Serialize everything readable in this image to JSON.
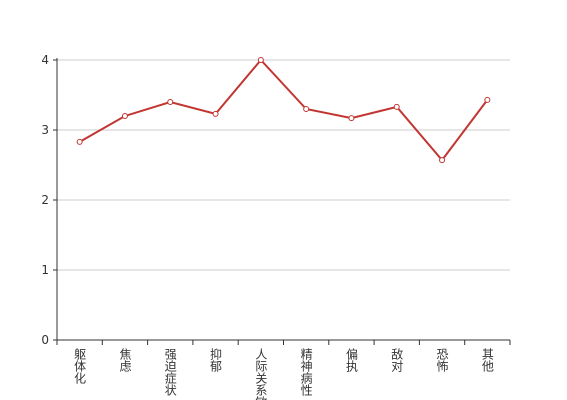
{
  "chart_data": {
    "type": "line",
    "categories": [
      "躯体化",
      "焦虑",
      "强迫症状",
      "抑郁",
      "人际关系敏感",
      "精神病性",
      "偏执",
      "敌对",
      "恐怖",
      "其他"
    ],
    "series": [
      {
        "color": "#c23531",
        "values": [
          2.83,
          3.2,
          3.4,
          3.23,
          4.0,
          3.3,
          3.17,
          3.33,
          2.57,
          3.43
        ]
      }
    ],
    "ylim": [
      0,
      4
    ],
    "yticks": [
      0,
      1,
      2,
      3,
      4
    ],
    "grid": true
  }
}
